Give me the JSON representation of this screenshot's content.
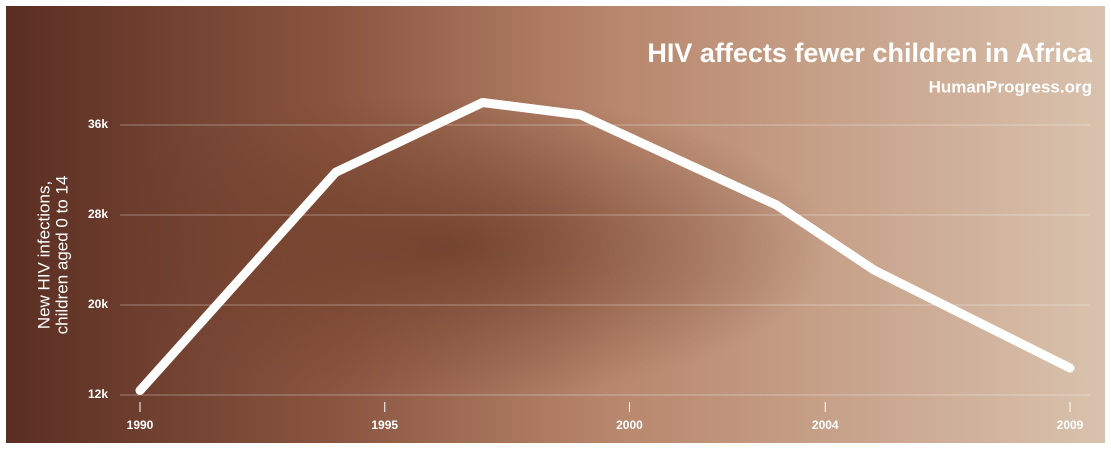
{
  "chart_data": {
    "type": "line",
    "title": "HIV affects fewer children in Africa",
    "subtitle": "HumanProgress.org",
    "y_label": [
      "New HIV infections,",
      "children aged 0 to 14"
    ],
    "x": [
      1990,
      1994,
      1997,
      1999,
      2003,
      2005,
      2009
    ],
    "series": [
      {
        "color": "#ffffff",
        "values": [
          12400,
          31800,
          38000,
          36900,
          28900,
          23100,
          14400
        ]
      }
    ],
    "xlim": [
      1990,
      2009
    ],
    "xticks": [
      1990,
      1995,
      2000,
      2004,
      2009
    ],
    "ylim": [
      12000,
      40000
    ],
    "yticks": [
      {
        "value": 12000,
        "label": "12k"
      },
      {
        "value": 20000,
        "label": "20k"
      },
      {
        "value": 28000,
        "label": "28k"
      },
      {
        "value": 36000,
        "label": "36k"
      }
    ],
    "grid": true
  }
}
